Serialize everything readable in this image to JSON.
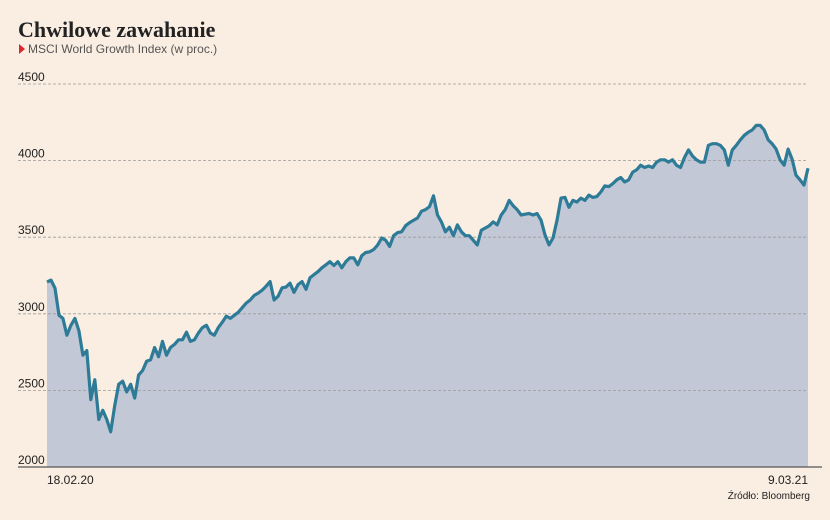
{
  "chart_data": {
    "type": "area",
    "title": "Chwilowe zawahanie",
    "subtitle": "MSCI World Growth Index (w proc.)",
    "source": "Źródło: Bloomberg",
    "color": "#2e7b98",
    "fill": "#c3c8d6",
    "ylim": [
      2000,
      4500
    ],
    "yticks": [
      2000,
      2500,
      3000,
      3500,
      4000,
      4500
    ],
    "grid": true,
    "categories": [
      "18.02.20",
      null,
      null,
      null,
      null,
      null,
      null,
      null,
      null,
      null,
      null,
      null,
      null,
      null,
      null,
      null,
      null,
      null,
      null,
      null,
      null,
      null,
      null,
      null,
      null,
      null,
      null,
      null,
      null,
      null,
      null,
      null,
      null,
      null,
      null,
      null,
      null,
      null,
      null,
      null,
      null,
      null,
      null,
      null,
      null,
      null,
      null,
      null,
      null,
      null,
      null,
      null,
      null,
      null,
      null,
      null,
      null,
      null,
      null,
      null,
      null,
      null,
      null,
      null,
      null,
      null,
      null,
      null,
      null,
      null,
      null,
      null,
      null,
      null,
      null,
      null,
      null,
      null,
      null,
      null,
      null,
      null,
      null,
      null,
      null,
      null,
      null,
      null,
      null,
      null,
      null,
      null,
      null,
      null,
      null,
      null,
      null,
      null,
      null,
      null,
      null,
      null,
      null,
      null,
      null,
      null,
      null,
      null,
      null,
      null,
      null,
      null,
      null,
      null,
      null,
      null,
      null,
      null,
      null,
      null,
      null,
      null,
      null,
      null,
      null,
      null,
      null,
      null,
      null,
      null,
      null,
      null,
      null,
      null,
      null,
      null,
      null,
      null,
      null,
      null,
      null,
      null,
      null,
      null,
      null,
      null,
      null,
      null,
      null,
      null,
      null,
      null,
      null,
      null,
      null,
      null,
      null,
      null,
      null,
      null,
      null,
      null,
      null,
      null,
      null,
      null,
      null,
      null,
      null,
      null,
      null,
      null,
      null,
      null,
      null,
      null,
      null,
      null,
      null,
      null,
      null,
      null,
      null,
      null,
      null,
      null,
      null,
      null,
      null,
      null,
      null,
      "9.03.21"
    ],
    "values": [
      3208,
      3220,
      3168,
      2990,
      2970,
      2860,
      2925,
      2970,
      2890,
      2730,
      2760,
      2440,
      2570,
      2310,
      2370,
      2310,
      2230,
      2400,
      2540,
      2560,
      2490,
      2540,
      2450,
      2600,
      2630,
      2690,
      2700,
      2780,
      2720,
      2820,
      2730,
      2780,
      2800,
      2830,
      2830,
      2880,
      2820,
      2830,
      2875,
      2910,
      2925,
      2875,
      2860,
      2910,
      2945,
      2985,
      2970,
      2990,
      3010,
      3040,
      3070,
      3090,
      3120,
      3135,
      3155,
      3180,
      3210,
      3090,
      3115,
      3170,
      3175,
      3200,
      3140,
      3190,
      3210,
      3160,
      3235,
      3255,
      3275,
      3300,
      3320,
      3340,
      3315,
      3340,
      3300,
      3340,
      3365,
      3365,
      3320,
      3380,
      3400,
      3405,
      3420,
      3450,
      3495,
      3480,
      3440,
      3510,
      3530,
      3535,
      3575,
      3595,
      3610,
      3625,
      3670,
      3680,
      3700,
      3770,
      3645,
      3600,
      3535,
      3565,
      3510,
      3580,
      3535,
      3510,
      3510,
      3480,
      3450,
      3545,
      3560,
      3575,
      3600,
      3580,
      3645,
      3680,
      3740,
      3705,
      3680,
      3645,
      3650,
      3655,
      3645,
      3655,
      3610,
      3515,
      3450,
      3495,
      3610,
      3755,
      3760,
      3695,
      3740,
      3730,
      3755,
      3740,
      3775,
      3760,
      3765,
      3795,
      3835,
      3830,
      3850,
      3875,
      3890,
      3860,
      3875,
      3925,
      3940,
      3970,
      3955,
      3965,
      3955,
      3990,
      4005,
      4005,
      3990,
      4005,
      3970,
      3955,
      4020,
      4070,
      4030,
      4005,
      3990,
      3990,
      4100,
      4110,
      4110,
      4100,
      4070,
      3970,
      4070,
      4100,
      4135,
      4165,
      4185,
      4200,
      4230,
      4230,
      4200,
      4135,
      4110,
      4075,
      4005,
      3970,
      4075,
      4010,
      3905,
      3875,
      3840,
      3950
    ]
  }
}
